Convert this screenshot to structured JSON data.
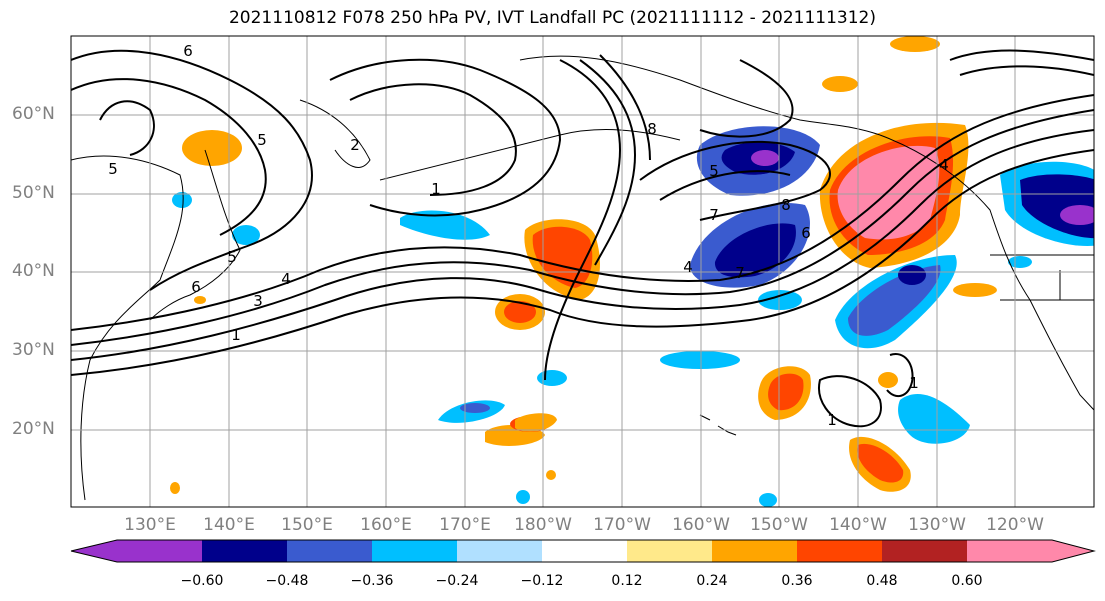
{
  "title": "2021110812 F078 250 hPa PV, IVT Landfall PC (2021111112 - 2021111312)",
  "latitude_labels": [
    "60°N",
    "50°N",
    "40°N",
    "30°N",
    "20°N"
  ],
  "longitude_labels": [
    "130°E",
    "140°E",
    "150°E",
    "160°E",
    "170°E",
    "180°W",
    "170°W",
    "160°W",
    "150°W",
    "140°W",
    "130°W",
    "120°W"
  ],
  "pv_contour_labels": [
    "6",
    "5",
    "5",
    "5",
    "1",
    "6",
    "3",
    "4",
    "1",
    "2",
    "8",
    "7",
    "8",
    "5",
    "4",
    "7",
    "6",
    "4",
    "1",
    "1"
  ],
  "colorbar": {
    "tick_labels": [
      "−0.60",
      "−0.48",
      "−0.36",
      "−0.24",
      "−0.12",
      "0.12",
      "0.24",
      "0.36",
      "0.48",
      "0.60"
    ],
    "colors": [
      "#9932cc",
      "#00008b",
      "#3a5bcf",
      "#00bfff",
      "#b0e0ff",
      "#ffffff",
      "#ffe98a",
      "#ffa500",
      "#ff4500",
      "#b22222",
      "#ff88aa"
    ]
  }
}
